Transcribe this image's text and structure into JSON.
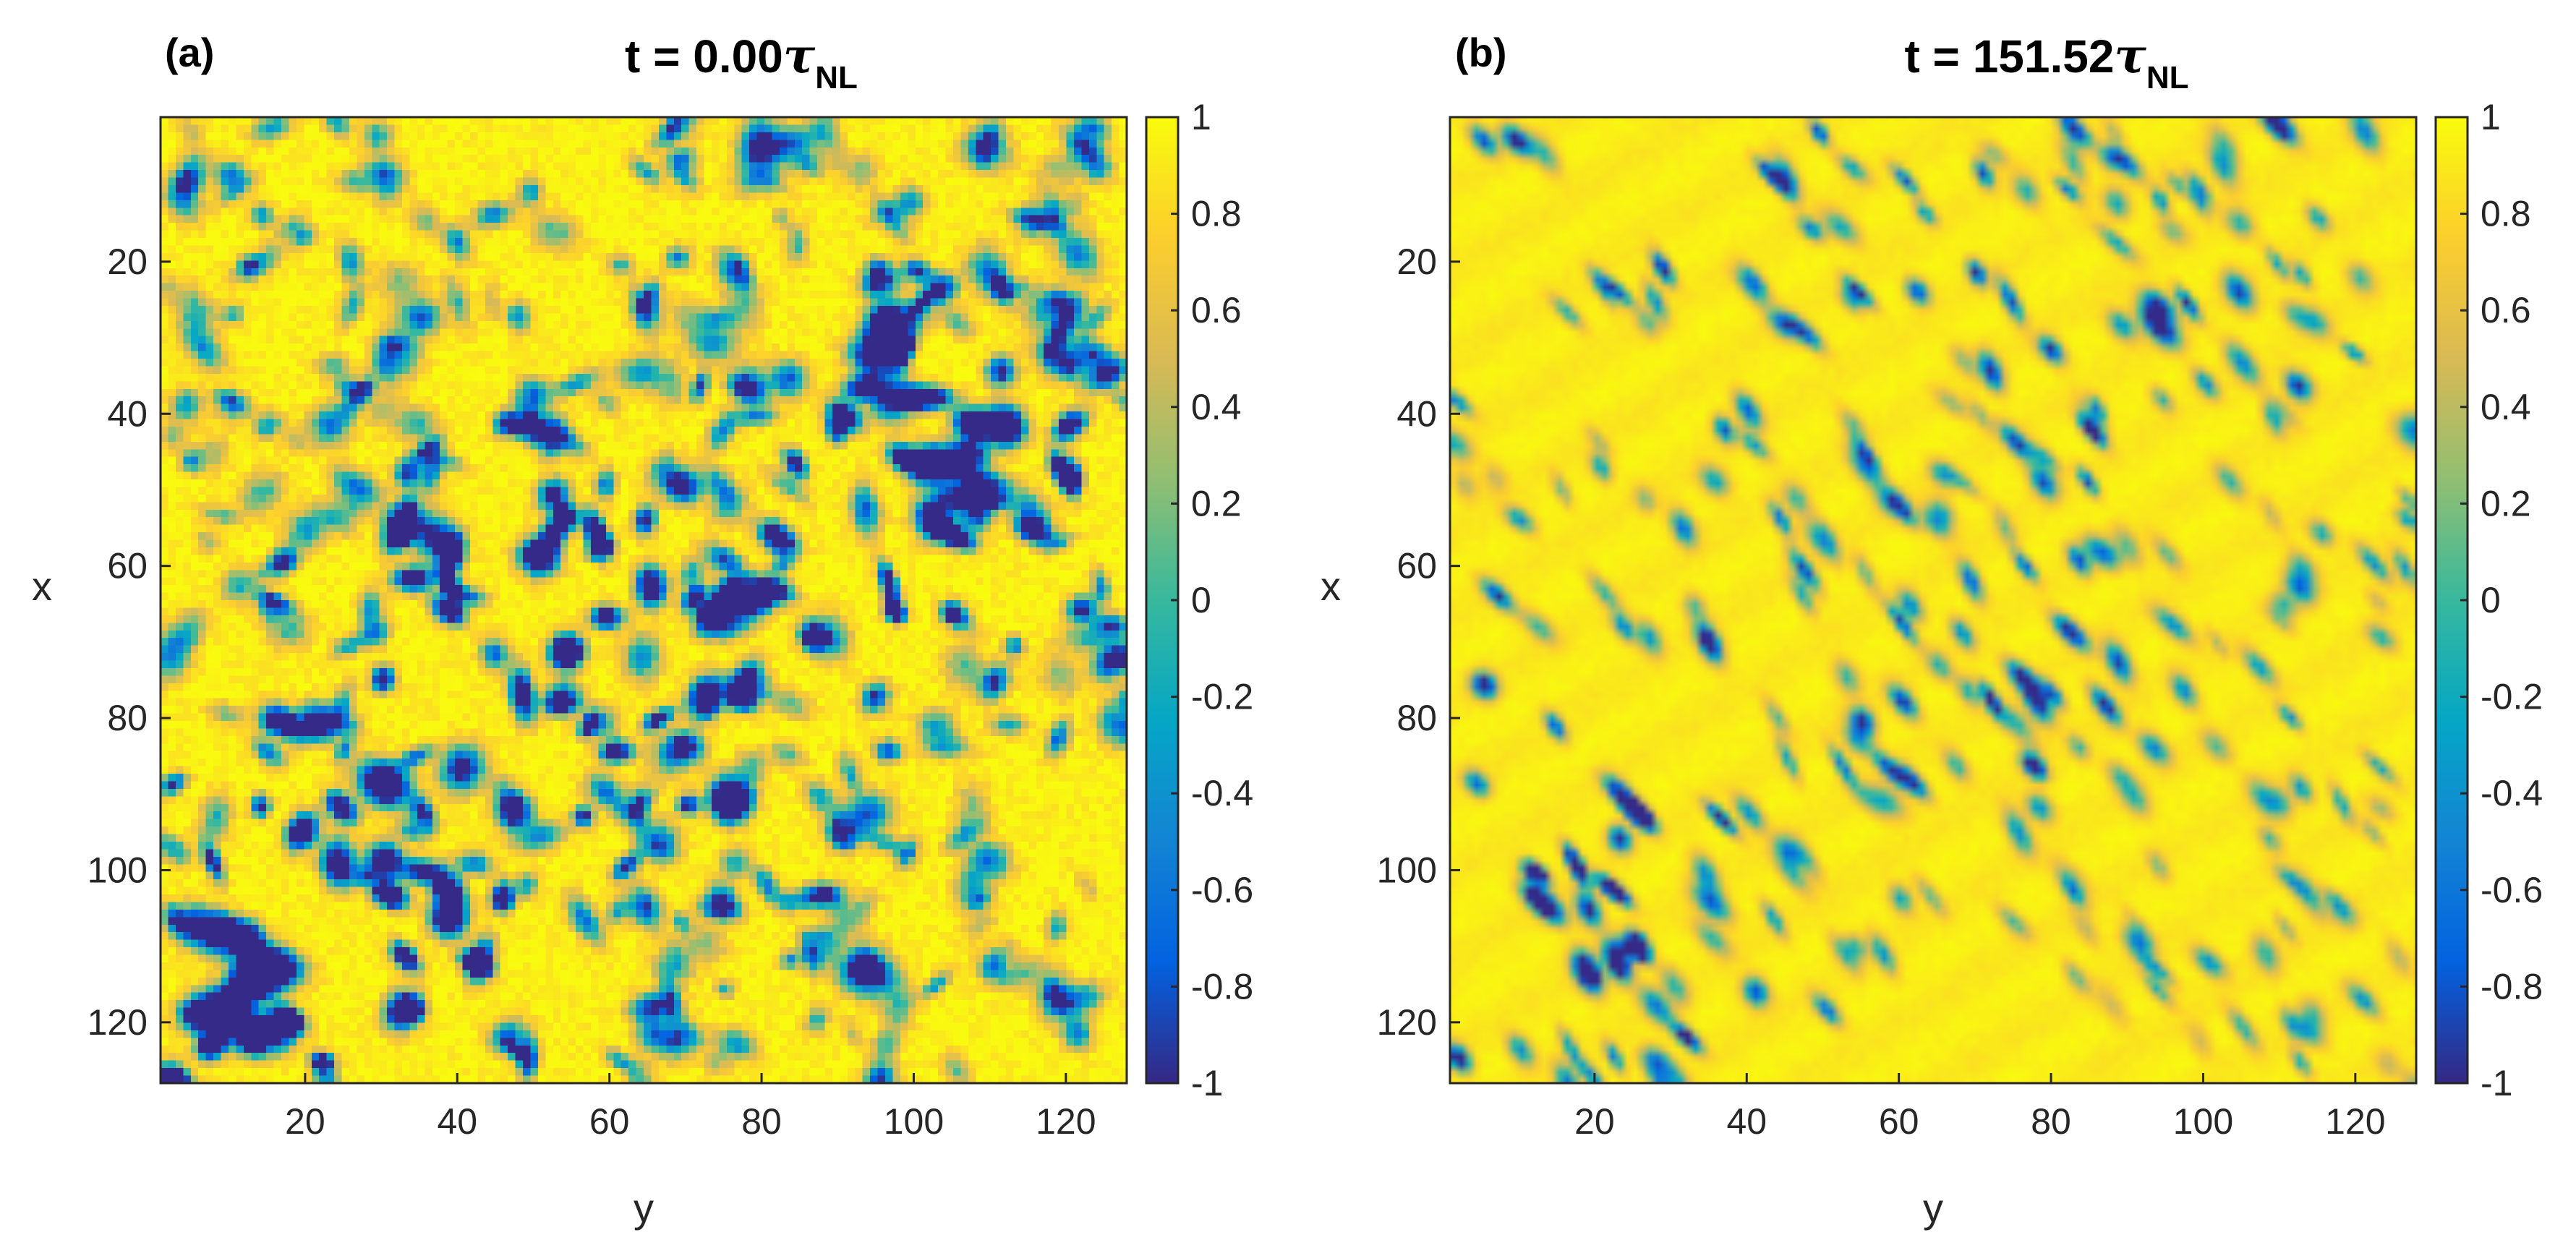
{
  "chart_data": [
    {
      "type": "heatmap",
      "panel": "(a)",
      "title": {
        "prefix": "t = 0.00",
        "symbol": "τ",
        "subscript": "NL"
      },
      "xlabel": "y",
      "ylabel": "x",
      "xlim": [
        1,
        128
      ],
      "ylim": [
        1,
        128
      ],
      "xticks": [
        20,
        40,
        60,
        80,
        100,
        120
      ],
      "yticks": [
        20,
        40,
        60,
        80,
        100,
        120
      ],
      "xtick_labels": [
        "20",
        "40",
        "60",
        "80",
        "100",
        "120"
      ],
      "ytick_labels": [
        "20",
        "40",
        "60",
        "80",
        "100",
        "120"
      ],
      "grid_size": 128,
      "seed": 7,
      "texture": "granular",
      "colorbar": {
        "limits": [
          -1,
          1
        ],
        "ticks": [
          1,
          0.8,
          0.6,
          0.4,
          0.2,
          0,
          -0.2,
          -0.4,
          -0.6,
          -0.8,
          -1
        ],
        "tick_labels": [
          "1",
          "0.8",
          "0.6",
          "0.4",
          "0.2",
          "0",
          "-0.2",
          "-0.4",
          "-0.6",
          "-0.8",
          "-1"
        ]
      }
    },
    {
      "type": "heatmap",
      "panel": "(b)",
      "title": {
        "prefix": "t = 151.52",
        "symbol": "τ",
        "subscript": "NL"
      },
      "xlabel": "y",
      "ylabel": "x",
      "xlim": [
        1,
        128
      ],
      "ylim": [
        1,
        128
      ],
      "xticks": [
        20,
        40,
        60,
        80,
        100,
        120
      ],
      "yticks": [
        20,
        40,
        60,
        80,
        100,
        120
      ],
      "xtick_labels": [
        "20",
        "40",
        "60",
        "80",
        "100",
        "120"
      ],
      "ytick_labels": [
        "20",
        "40",
        "60",
        "80",
        "100",
        "120"
      ],
      "grid_size": 128,
      "seed": 19,
      "texture": "smooth-streaks",
      "colorbar": {
        "limits": [
          -1,
          1
        ],
        "ticks": [
          1,
          0.8,
          0.6,
          0.4,
          0.2,
          0,
          -0.2,
          -0.4,
          -0.6,
          -0.8,
          -1
        ],
        "tick_labels": [
          "1",
          "0.8",
          "0.6",
          "0.4",
          "0.2",
          "0",
          "-0.2",
          "-0.4",
          "-0.6",
          "-0.8",
          "-1"
        ]
      }
    }
  ],
  "colormap": {
    "name": "parula",
    "stops": [
      "#352a87",
      "#0363e1",
      "#1485d4",
      "#06a7c6",
      "#38b99e",
      "#92bf73",
      "#d9ba56",
      "#fcce2e",
      "#f9fb0e"
    ]
  }
}
